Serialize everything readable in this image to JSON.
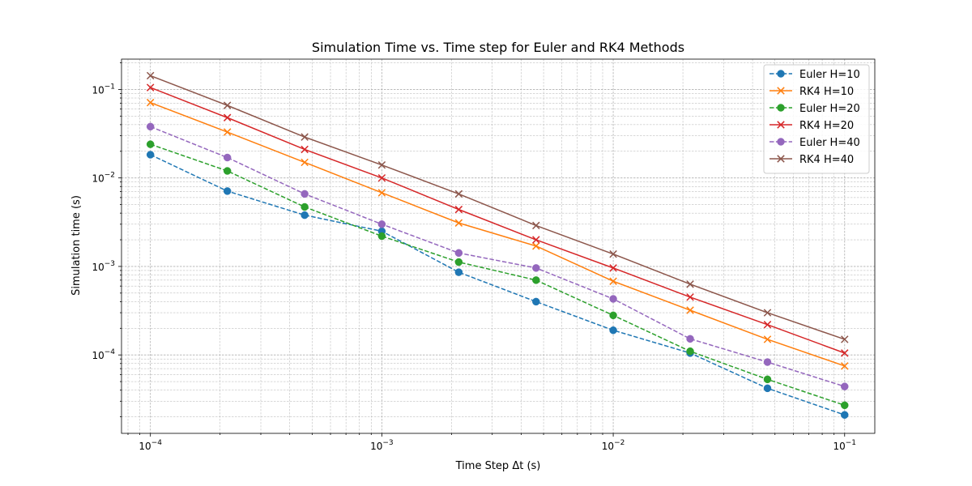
{
  "chart_data": {
    "type": "line",
    "title": "Simulation Time vs. Time step for Euler and RK4 Methods",
    "xlabel": "Time Step  Δt (s)",
    "ylabel": "Simulation time (s)",
    "xscale": "log",
    "yscale": "log",
    "xlim": [
      7.5e-05,
      0.135
    ],
    "ylim": [
      1.3e-05,
      0.22
    ],
    "grid": true,
    "legend_position": "top-right",
    "x": [
      0.0001,
      0.000215,
      0.000464,
      0.001,
      0.00215,
      0.00464,
      0.01,
      0.0215,
      0.0464,
      0.1
    ],
    "x_ticks": [
      {
        "value": 0.0001,
        "base": "10",
        "exp": "−4"
      },
      {
        "value": 0.001,
        "base": "10",
        "exp": "−3"
      },
      {
        "value": 0.01,
        "base": "10",
        "exp": "−2"
      },
      {
        "value": 0.1,
        "base": "10",
        "exp": "−1"
      }
    ],
    "y_ticks": [
      {
        "value": 0.0001,
        "base": "10",
        "exp": "−4"
      },
      {
        "value": 0.001,
        "base": "10",
        "exp": "−3"
      },
      {
        "value": 0.01,
        "base": "10",
        "exp": "−2"
      },
      {
        "value": 0.1,
        "base": "10",
        "exp": "−1"
      }
    ],
    "series": [
      {
        "name": "Euler H=10",
        "color": "#1f77b4",
        "linestyle": "dashed",
        "marker": "circle",
        "values": [
          0.0183,
          0.0071,
          0.0038,
          0.0025,
          0.00086,
          0.0004,
          0.00019,
          0.000105,
          4.2e-05,
          2.1e-05
        ]
      },
      {
        "name": "RK4 H=10",
        "color": "#ff7f0e",
        "linestyle": "solid",
        "marker": "x",
        "values": [
          0.071,
          0.033,
          0.015,
          0.0068,
          0.0031,
          0.0017,
          0.00068,
          0.00032,
          0.00015,
          7.5e-05
        ]
      },
      {
        "name": "Euler H=20",
        "color": "#2ca02c",
        "linestyle": "dashed",
        "marker": "circle",
        "values": [
          0.024,
          0.012,
          0.0047,
          0.0022,
          0.00112,
          0.0007,
          0.00028,
          0.00011,
          5.3e-05,
          2.7e-05
        ]
      },
      {
        "name": "RK4 H=20",
        "color": "#d62728",
        "linestyle": "solid",
        "marker": "x",
        "values": [
          0.105,
          0.048,
          0.021,
          0.01,
          0.0044,
          0.002,
          0.00096,
          0.00045,
          0.00022,
          0.000105
        ]
      },
      {
        "name": "Euler H=40",
        "color": "#9467bd",
        "linestyle": "dashed",
        "marker": "circle",
        "values": [
          0.038,
          0.017,
          0.0066,
          0.003,
          0.00142,
          0.00096,
          0.00043,
          0.000152,
          8.3e-05,
          4.4e-05
        ]
      },
      {
        "name": "RK4 H=40",
        "color": "#8c564b",
        "linestyle": "solid",
        "marker": "x",
        "values": [
          0.143,
          0.066,
          0.029,
          0.014,
          0.0066,
          0.0029,
          0.00138,
          0.00063,
          0.0003,
          0.00015
        ]
      }
    ]
  }
}
